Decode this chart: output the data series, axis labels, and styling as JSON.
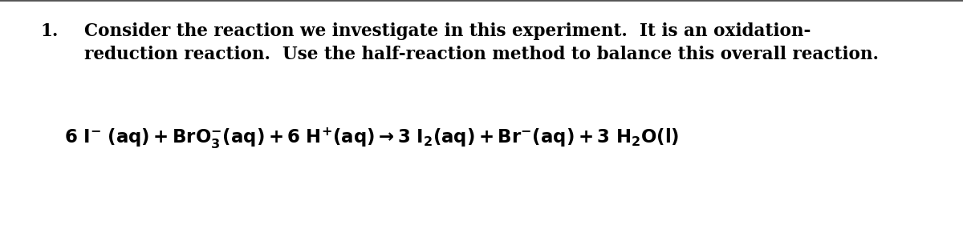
{
  "background_color": "#ffffff",
  "top_border_color": "#555555",
  "item_number": "1.",
  "paragraph_line1": "Consider the reaction we investigate in this experiment.  It is an oxidation-",
  "paragraph_line2": "reduction reaction.  Use the half-reaction method to balance this overall reaction.",
  "equation_mathtext": "$\\mathbf{6\\ I^{-}\\ (aq) + BrO_{3}^{-}(aq) + 6\\ H^{+}(aq) \\rightarrow 3\\ I_{2}(aq) + Br^{-}(aq) + 3\\ H_{2}O(l)}$",
  "font_size_paragraph": 15.5,
  "font_size_equation": 16.5,
  "font_weight_paragraph": "bold",
  "text_color": "#000000",
  "fig_width": 12.0,
  "fig_height": 2.81,
  "dpi": 100
}
